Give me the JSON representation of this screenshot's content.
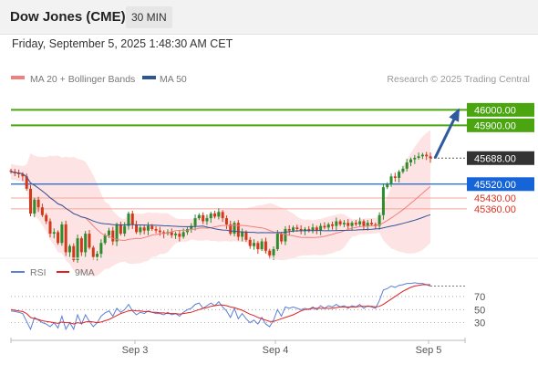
{
  "header": {
    "title": "Dow Jones (CME)",
    "timeframe": "30 MIN"
  },
  "datetime": "Friday, September 5, 2025 1:48:30 AM CET",
  "legend": {
    "items": [
      {
        "label": "MA 20 + Bollinger Bands",
        "color": "#f08080"
      },
      {
        "label": "MA 50",
        "color": "#2f5597"
      }
    ],
    "credit": "Research © 2025 Trading Central"
  },
  "price_levels": [
    {
      "value": 46000,
      "label": "46000.00",
      "kind": "resistance",
      "color": "#4aa510"
    },
    {
      "value": 45900,
      "label": "45900.00",
      "kind": "resistance",
      "color": "#4aa510"
    },
    {
      "value": 45688,
      "label": "45688.00",
      "kind": "last",
      "color": "#333333"
    },
    {
      "value": 45520,
      "label": "45520.00",
      "kind": "pivot",
      "color": "#1565d8"
    },
    {
      "value": 45430,
      "label": "45430.00",
      "kind": "support",
      "color": "#e0301e"
    },
    {
      "value": 45360,
      "label": "45360.00",
      "kind": "support",
      "color": "#e0301e"
    }
  ],
  "chart_data": [
    {
      "type": "candlestick",
      "title": "Dow Jones (CME)",
      "timeframe": "30 MIN",
      "ylim": [
        45000,
        46120
      ],
      "x_ticks": [
        "Sep 3",
        "Sep 4",
        "Sep 5"
      ],
      "closes": [
        45600,
        45590,
        45585,
        45570,
        45490,
        45330,
        45420,
        45370,
        45320,
        45280,
        45200,
        45210,
        45140,
        45260,
        45080,
        45120,
        45030,
        45170,
        45080,
        45200,
        45110,
        45050,
        45070,
        45140,
        45190,
        45220,
        45150,
        45260,
        45200,
        45250,
        45330,
        45260,
        45210,
        45240,
        45220,
        45250,
        45230,
        45220,
        45210,
        45200,
        45210,
        45190,
        45200,
        45180,
        45210,
        45230,
        45250,
        45300,
        45320,
        45280,
        45300,
        45330,
        45310,
        45340,
        45300,
        45260,
        45200,
        45270,
        45180,
        45210,
        45160,
        45120,
        45140,
        45100,
        45150,
        45090,
        45060,
        45100,
        45200,
        45150,
        45230,
        45220,
        45240,
        45230,
        45220,
        45230,
        45220,
        45240,
        45220,
        45250,
        45240,
        45260,
        45250,
        45280,
        45260,
        45270,
        45250,
        45270,
        45260,
        45280,
        45250,
        45270,
        45260,
        45250,
        45320,
        45500,
        45520,
        45570,
        45560,
        45600,
        45620,
        45660,
        45680,
        45690,
        45700,
        45710,
        45700,
        45688
      ],
      "forecast": {
        "from": 45688,
        "to": 46000
      },
      "series": [
        {
          "name": "MA 20 + Bollinger Bands"
        },
        {
          "name": "MA 50"
        }
      ]
    },
    {
      "type": "line",
      "title": "RSI",
      "ylim": [
        10,
        95
      ],
      "y_ticks": [
        70,
        50,
        30
      ],
      "series": [
        {
          "name": "RSI",
          "color": "#5b7fd6",
          "values": [
            48,
            47,
            46,
            44,
            32,
            20,
            38,
            34,
            30,
            28,
            24,
            30,
            22,
            40,
            20,
            30,
            20,
            42,
            28,
            42,
            32,
            24,
            30,
            40,
            45,
            48,
            40,
            52,
            46,
            50,
            58,
            48,
            42,
            46,
            44,
            48,
            46,
            44,
            44,
            42,
            46,
            42,
            44,
            40,
            46,
            50,
            52,
            58,
            60,
            52,
            56,
            60,
            56,
            62,
            54,
            48,
            38,
            52,
            36,
            44,
            36,
            30,
            34,
            28,
            38,
            28,
            24,
            34,
            50,
            40,
            54,
            52,
            54,
            52,
            50,
            52,
            50,
            54,
            50,
            56,
            52,
            56,
            54,
            58,
            54,
            56,
            52,
            56,
            54,
            58,
            52,
            56,
            54,
            52,
            64,
            80,
            82,
            86,
            84,
            87,
            88,
            90,
            90,
            91,
            90,
            90,
            88,
            86
          ]
        },
        {
          "name": "9MA",
          "color": "#e02020",
          "values": [
            50,
            49,
            48,
            47,
            44,
            38,
            36,
            35,
            33,
            32,
            31,
            30,
            29,
            31,
            30,
            30,
            28,
            30,
            29,
            31,
            32,
            31,
            30,
            31,
            33,
            35,
            38,
            41,
            44,
            46,
            48,
            49,
            48,
            48,
            47,
            47,
            46,
            46,
            45,
            45,
            44,
            44,
            44,
            43,
            44,
            45,
            46,
            48,
            50,
            52,
            53,
            55,
            56,
            57,
            57,
            56,
            54,
            53,
            51,
            49,
            46,
            43,
            41,
            38,
            36,
            34,
            32,
            32,
            34,
            36,
            38,
            40,
            42,
            45,
            48,
            50,
            51,
            52,
            52,
            52,
            52,
            52,
            52,
            53,
            54,
            54,
            54,
            54,
            54,
            55,
            55,
            55,
            55,
            54,
            55,
            58,
            62,
            66,
            70,
            74,
            78,
            81,
            84,
            86,
            87,
            88,
            88,
            88
          ]
        }
      ]
    }
  ]
}
